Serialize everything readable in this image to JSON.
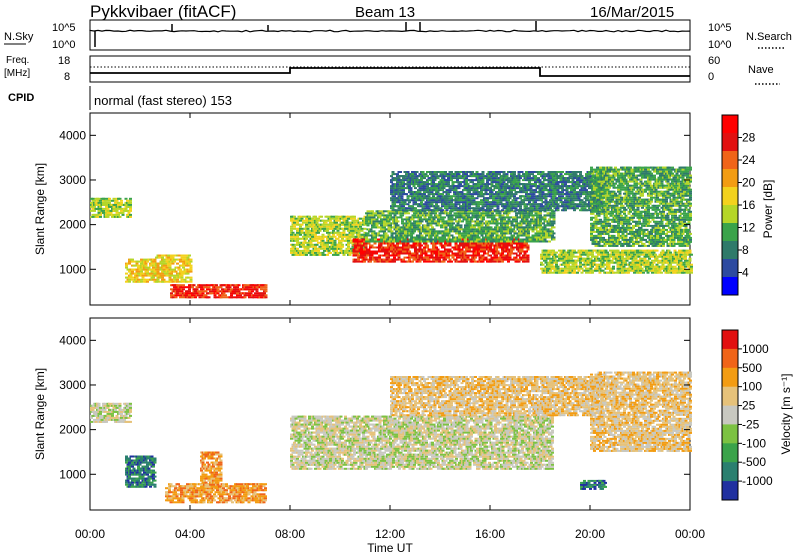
{
  "header": {
    "title": "Pykkvibaer (fitACF)",
    "beam": "Beam 13",
    "date": "16/Mar/2015"
  },
  "noise_panel": {
    "left_label": "N.Sky",
    "right_label": "N.Search",
    "left_ticks": [
      "10^5",
      "10^0"
    ],
    "right_ticks": [
      "10^5",
      "10^0"
    ]
  },
  "freq_panel": {
    "left_label_line1": "Freq.",
    "left_label_line2": "[MHz]",
    "right_label": "Nave",
    "left_ticks": [
      "18",
      "8"
    ],
    "right_ticks": [
      "60",
      "0"
    ]
  },
  "cpid": {
    "label": "CPID",
    "text": "normal (fast stereo) 153"
  },
  "chart_data": [
    {
      "type": "heatmap",
      "name": "power",
      "ylabel": "Slant Range [km]",
      "yticks": [
        "4000",
        "3000",
        "2000",
        "1000"
      ],
      "ylim": [
        200,
        4500
      ],
      "colorbar_label": "Power [dB]",
      "colorbar_ticks": [
        "28",
        "24",
        "20",
        "16",
        "12",
        "8",
        "4"
      ],
      "colors": [
        "#0000ff",
        "#2d4aa0",
        "#2f7a6a",
        "#3aa34a",
        "#b5d628",
        "#f3d21d",
        "#f39c12",
        "#f06418",
        "#e21010",
        "#ff0000"
      ],
      "echo_bands": [
        {
          "t0": 0.0,
          "t1": 1.6,
          "r0": 2150,
          "r1": 2600,
          "level": 4
        },
        {
          "t0": 1.4,
          "t1": 2.6,
          "r0": 700,
          "r1": 1200,
          "level": 5
        },
        {
          "t0": 2.6,
          "t1": 4.0,
          "r0": 700,
          "r1": 1300,
          "level": 5
        },
        {
          "t0": 3.2,
          "t1": 7.0,
          "r0": 350,
          "r1": 650,
          "level": 8
        },
        {
          "t0": 8.0,
          "t1": 11.0,
          "r0": 1300,
          "r1": 2200,
          "level": 4
        },
        {
          "t0": 10.5,
          "t1": 17.5,
          "r0": 1150,
          "r1": 1650,
          "level": 8
        },
        {
          "t0": 11.0,
          "t1": 18.5,
          "r0": 1600,
          "r1": 2300,
          "level": 3
        },
        {
          "t0": 12.0,
          "t1": 20.5,
          "r0": 2300,
          "r1": 3200,
          "level": 2
        },
        {
          "t0": 18.0,
          "t1": 24.0,
          "r0": 900,
          "r1": 1400,
          "level": 4
        },
        {
          "t0": 20.0,
          "t1": 24.0,
          "r0": 1500,
          "r1": 3300,
          "level": 3
        }
      ]
    },
    {
      "type": "heatmap",
      "name": "velocity",
      "ylabel": "Slant Range [km]",
      "yticks": [
        "4000",
        "3000",
        "2000",
        "1000"
      ],
      "ylim": [
        200,
        4500
      ],
      "xlabel": "Time UT",
      "xticks": [
        "00:00",
        "04:00",
        "08:00",
        "12:00",
        "16:00",
        "20:00",
        "00:00"
      ],
      "xlim": [
        0,
        24
      ],
      "colorbar_label": "Velocity [m s⁻¹]",
      "colorbar_ticks": [
        "1000",
        "500",
        "100",
        "25",
        "-25",
        "-100",
        "-500",
        "-1000"
      ],
      "colors": [
        "#2030a0",
        "#2a7f6f",
        "#3aa34a",
        "#7cc242",
        "#c8c8c0",
        "#e6c27a",
        "#f39c12",
        "#f06418",
        "#e21010"
      ],
      "echo_bands": [
        {
          "t0": 0.0,
          "t1": 1.6,
          "r0": 2150,
          "r1": 2600,
          "level": 4
        },
        {
          "t0": 1.4,
          "t1": 2.6,
          "r0": 700,
          "r1": 1400,
          "level": 1
        },
        {
          "t0": 3.0,
          "t1": 7.0,
          "r0": 350,
          "r1": 800,
          "level": 6
        },
        {
          "t0": 4.4,
          "t1": 5.2,
          "r0": 700,
          "r1": 1500,
          "level": 6
        },
        {
          "t0": 8.0,
          "t1": 18.5,
          "r0": 1100,
          "r1": 2300,
          "level": 4
        },
        {
          "t0": 12.0,
          "t1": 20.5,
          "r0": 2300,
          "r1": 3200,
          "level": 5
        },
        {
          "t0": 20.0,
          "t1": 24.0,
          "r0": 1500,
          "r1": 3300,
          "level": 5
        },
        {
          "t0": 19.6,
          "t1": 20.6,
          "r0": 650,
          "r1": 850,
          "level": 1
        }
      ]
    }
  ]
}
